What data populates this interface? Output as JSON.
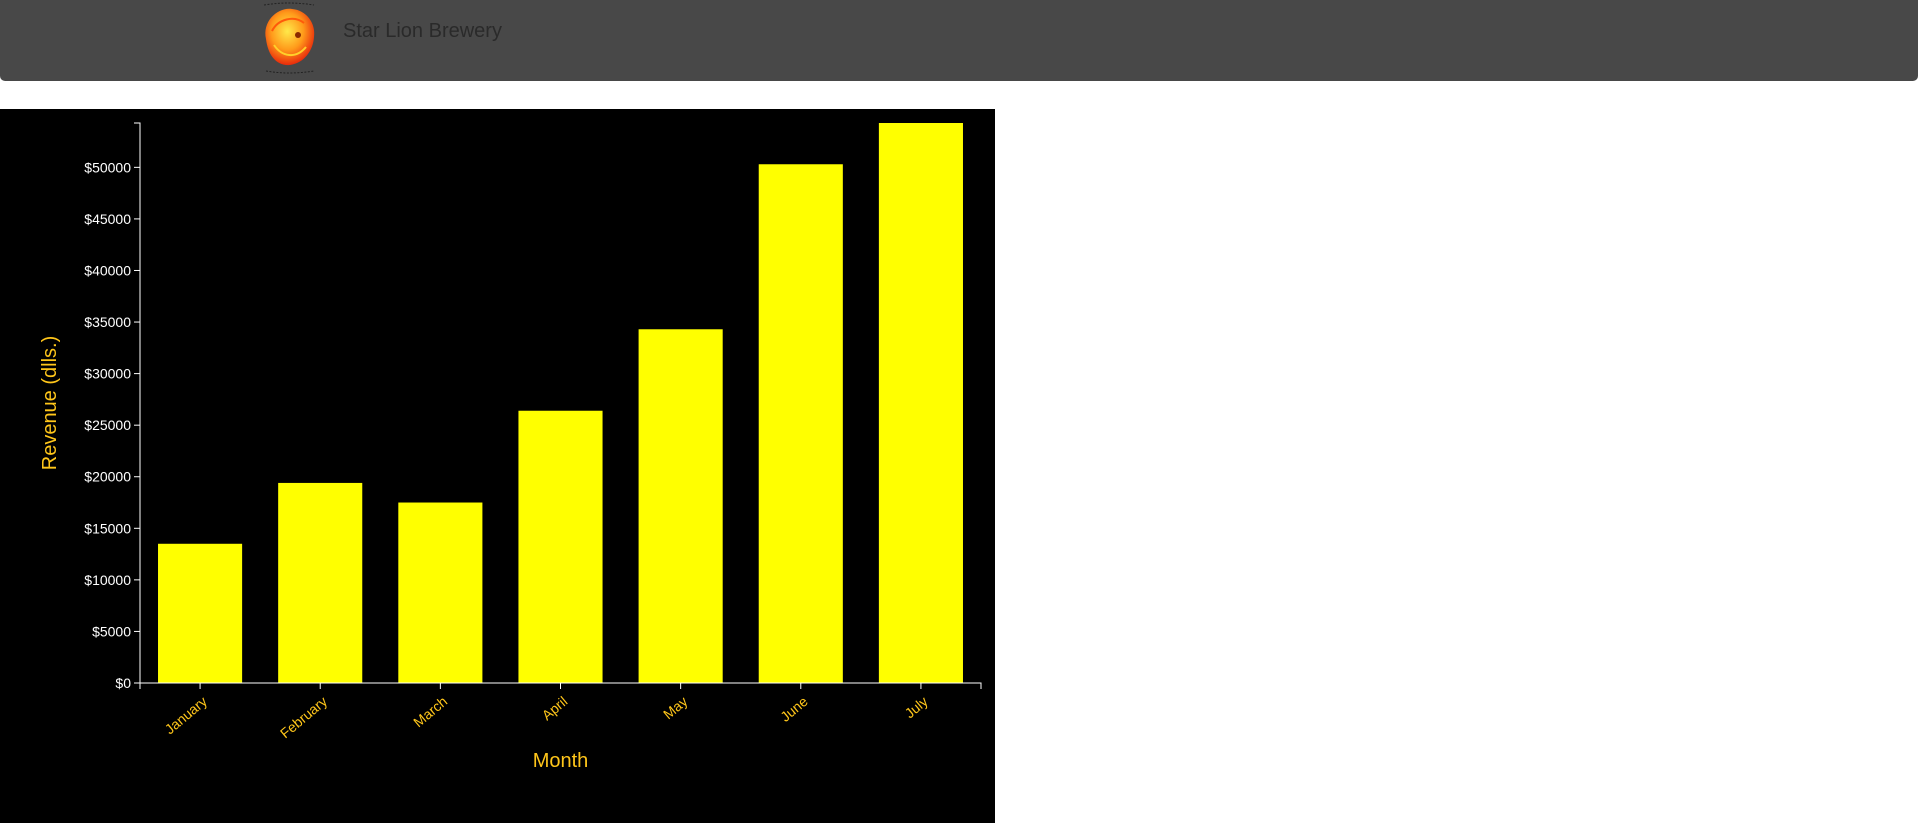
{
  "navbar": {
    "brand_name": "Star Lion Brewery",
    "logo_icon": "lion-logo-icon",
    "background": "#484848"
  },
  "chart_data": {
    "type": "bar",
    "categories": [
      "January",
      "February",
      "March",
      "April",
      "May",
      "June",
      "July"
    ],
    "values": [
      13500,
      19400,
      17500,
      26400,
      34300,
      50300,
      54300
    ],
    "ylim": [
      0,
      54300
    ],
    "yticks": [
      0,
      5000,
      10000,
      15000,
      20000,
      25000,
      30000,
      35000,
      40000,
      45000,
      50000
    ],
    "ytick_labels": [
      "$0",
      "$5000",
      "$10000",
      "$15000",
      "$20000",
      "$25000",
      "$30000",
      "$35000",
      "$40000",
      "$45000",
      "$50000"
    ],
    "xlabel": "Month",
    "ylabel": "Revenue (dlls.)",
    "grid": false,
    "colors": {
      "bar": "#ffff00",
      "background": "#000000",
      "axis": "#ffffff",
      "ytick_text": "#ffffff",
      "xtick_text": "#ffc61a",
      "axis_title": "#ffc61a"
    }
  }
}
